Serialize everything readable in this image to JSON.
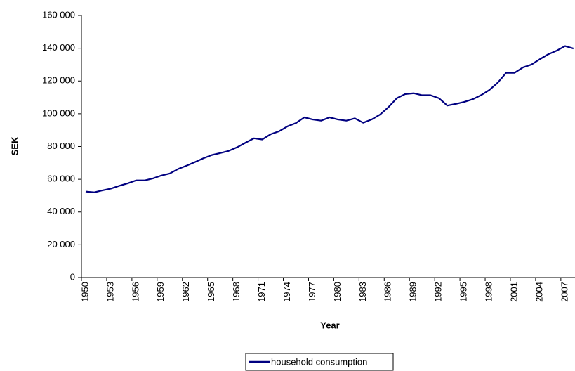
{
  "chart_data": {
    "type": "line",
    "x_label": "Year",
    "y_label": "SEK",
    "categories": [
      "1950",
      null,
      null,
      "1953",
      null,
      null,
      "1956",
      null,
      null,
      "1959",
      null,
      null,
      "1962",
      null,
      null,
      "1965",
      null,
      null,
      "1968",
      null,
      null,
      "1971",
      null,
      null,
      "1974",
      null,
      null,
      "1977",
      null,
      null,
      "1980",
      null,
      null,
      "1983",
      null,
      null,
      "1986",
      null,
      null,
      "1989",
      null,
      null,
      "1992",
      null,
      null,
      "1995",
      null,
      null,
      "1998",
      null,
      null,
      "2001",
      null,
      null,
      "2004",
      null,
      null,
      "2007",
      null
    ],
    "series": [
      {
        "name": "household consumption",
        "color": "#000080",
        "values": [
          52500,
          52000,
          53200,
          54300,
          56000,
          57500,
          59300,
          59300,
          60500,
          62300,
          63500,
          66300,
          68300,
          70500,
          72800,
          74800,
          76000,
          77300,
          79500,
          82300,
          85000,
          84300,
          87500,
          89300,
          92300,
          94300,
          97800,
          96500,
          95800,
          97800,
          96500,
          95800,
          97200,
          94500,
          96500,
          99500,
          104000,
          109500,
          112000,
          112500,
          111300,
          111300,
          109500,
          105000,
          106000,
          107200,
          108800,
          111300,
          114500,
          119000,
          125000,
          125000,
          128300,
          130000,
          133300,
          136300,
          138500,
          141300,
          139800
        ]
      }
    ],
    "ylim": [
      0,
      160000
    ],
    "yticks": [
      0,
      {
        "value": 20000,
        "label": "20 000"
      },
      {
        "value": 40000,
        "label": "40 000"
      },
      {
        "value": 60000,
        "label": "60 000"
      },
      {
        "value": 80000,
        "label": "80 000"
      },
      {
        "value": 100000,
        "label": "100 000"
      },
      {
        "value": 120000,
        "label": "120 000"
      },
      {
        "value": 140000,
        "label": "140 000"
      },
      {
        "value": 160000,
        "label": "160 000"
      }
    ],
    "grid": false,
    "legend": "bottom"
  }
}
